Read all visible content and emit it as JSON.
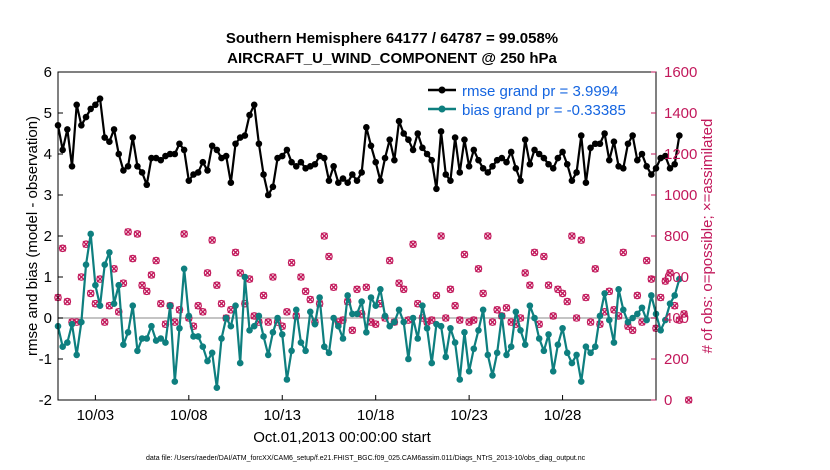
{
  "chart_data": {
    "type": "line",
    "title_line1": "Southern Hemisphere 64177 / 64787 = 99.058%",
    "title_line2": "AIRCRAFT_U_WIND_COMPONENT @ 250 hPa",
    "xlabel": "Oct.01,2013 00:00:00 start",
    "ylabel_left": "rmse and bias (model - observation)",
    "ylabel_right": "# of obs: o=possible; ×=assimilated",
    "footer": "data file: /Users/raeder/DAI/ATM_forcXX/CAM6_setup/f.e21.FHIST_BGC.f09_025.CAM6assim.011/Diags_NTrS_2013-10/obs_diag_output.nc",
    "xlim": [
      1.0,
      33.0
    ],
    "ylim_left": [
      -2,
      6
    ],
    "ylim_right": [
      0,
      1600
    ],
    "x_ticks": [
      {
        "value": 3,
        "label": "10/03"
      },
      {
        "value": 8,
        "label": "10/08"
      },
      {
        "value": 13,
        "label": "10/13"
      },
      {
        "value": 18,
        "label": "10/18"
      },
      {
        "value": 23,
        "label": "10/23"
      },
      {
        "value": 28,
        "label": "10/28"
      }
    ],
    "y_ticks_left": [
      "-2",
      "-1",
      "0",
      "1",
      "2",
      "3",
      "4",
      "5",
      "6"
    ],
    "y_ticks_right": [
      "0",
      "200",
      "400",
      "600",
      "800",
      "1000",
      "1200",
      "1400",
      "1600"
    ],
    "zero_line": 0,
    "series": [
      {
        "name": "rmse grand pr = 3.9994",
        "color": "#000000",
        "x_start": 1.0,
        "x_step": 0.25,
        "values": [
          4.7,
          4.1,
          4.6,
          3.7,
          5.2,
          4.7,
          4.9,
          5.1,
          5.2,
          5.35,
          4.4,
          4.3,
          4.6,
          4.0,
          3.6,
          3.7,
          4.4,
          3.7,
          3.55,
          3.25,
          3.9,
          3.9,
          3.85,
          3.95,
          4.0,
          4.0,
          4.25,
          4.1,
          3.35,
          3.5,
          3.55,
          3.8,
          3.6,
          4.2,
          4.1,
          3.9,
          3.95,
          3.3,
          4.25,
          4.4,
          4.45,
          4.95,
          5.2,
          4.25,
          3.5,
          3.0,
          3.2,
          3.9,
          3.95,
          4.1,
          3.8,
          3.7,
          3.8,
          3.65,
          3.7,
          3.75,
          3.95,
          3.9,
          3.35,
          3.7,
          3.3,
          3.4,
          3.3,
          3.5,
          3.35,
          3.55,
          4.65,
          4.2,
          3.8,
          3.35,
          3.9,
          4.35,
          3.85,
          4.8,
          4.5,
          4.35,
          4.1,
          4.5,
          4.15,
          4.0,
          3.85,
          3.15,
          4.55,
          3.5,
          3.35,
          4.4,
          3.55,
          4.35,
          3.7,
          4.1,
          3.85,
          3.65,
          3.55,
          3.7,
          3.85,
          3.9,
          3.8,
          4.05,
          3.65,
          3.35,
          4.35,
          3.75,
          4.1,
          4.0,
          3.9,
          3.75,
          3.65,
          3.9,
          4.05,
          3.75,
          3.35,
          3.55,
          4.45,
          3.3,
          4.15,
          4.25,
          4.25,
          4.5,
          3.85,
          4.3,
          3.7,
          3.65,
          4.25,
          4.45,
          3.85,
          4.0,
          3.7,
          3.5,
          3.65,
          3.9,
          3.95,
          3.65,
          3.75,
          4.45
        ]
      },
      {
        "name": "bias grand pr = -0.33385",
        "color": "#0e7f7f",
        "x_start": 1.0,
        "x_step": 0.25,
        "values": [
          -0.2,
          -0.7,
          -0.6,
          -0.15,
          -0.9,
          -0.1,
          1.3,
          2.05,
          0.8,
          0.3,
          1.3,
          1.6,
          0.35,
          0.8,
          -0.65,
          -0.35,
          0.3,
          -0.8,
          -0.5,
          -0.5,
          -0.2,
          -0.55,
          -0.5,
          -0.6,
          0.3,
          -1.55,
          -0.25,
          1.2,
          0.05,
          -0.45,
          -0.45,
          -0.7,
          -1.05,
          -0.85,
          -1.7,
          -0.5,
          0.0,
          -0.2,
          0.3,
          -1.1,
          1.0,
          -0.3,
          -0.2,
          0.05,
          -0.45,
          -0.9,
          -0.35,
          0.0,
          -0.4,
          -1.5,
          -0.8,
          0.2,
          -0.6,
          -0.8,
          0.15,
          -0.15,
          0.5,
          -0.7,
          -0.85,
          0.0,
          -0.2,
          -0.5,
          0.55,
          0.1,
          0.1,
          0.4,
          -0.35,
          0.5,
          0.3,
          0.7,
          0.05,
          -0.2,
          -0.1,
          0.2,
          -0.1,
          -1.0,
          0.0,
          -0.5,
          0.3,
          -0.25,
          -1.1,
          -0.15,
          -0.2,
          -0.95,
          -0.25,
          -0.6,
          -1.5,
          -0.35,
          -1.3,
          -0.75,
          -0.3,
          0.2,
          -0.9,
          -1.4,
          -0.85,
          0.05,
          -0.9,
          -0.7,
          0.15,
          -0.3,
          -0.65,
          0.3,
          0.0,
          -0.5,
          -0.8,
          -0.4,
          -1.3,
          -0.65,
          -0.25,
          -0.85,
          -1.1,
          -0.9,
          -1.55,
          -0.7,
          -0.85,
          -0.7,
          0.05,
          0.6,
          -0.05,
          -0.6,
          0.7,
          0.2,
          -0.1,
          0.0,
          0.1,
          0.25,
          -0.05,
          0.55,
          0.1,
          -0.3,
          -0.05,
          0.35,
          0.55,
          0.95
        ]
      }
    ],
    "obs_counts": {
      "name": "# of obs",
      "color": "#c2185b",
      "x_start": 1.0,
      "x_step": 0.25,
      "values": [
        500,
        740,
        480,
        380,
        380,
        600,
        760,
        520,
        470,
        590,
        380,
        460,
        640,
        430,
        570,
        820,
        690,
        810,
        560,
        530,
        610,
        680,
        470,
        370,
        460,
        380,
        440,
        810,
        400,
        360,
        460,
        430,
        620,
        780,
        560,
        470,
        400,
        440,
        720,
        620,
        470,
        590,
        410,
        380,
        510,
        380,
        600,
        380,
        360,
        430,
        670,
        410,
        600,
        530,
        490,
        380,
        470,
        800,
        700,
        550,
        380,
        390,
        480,
        340,
        540,
        420,
        550,
        380,
        370,
        470,
        400,
        680,
        380,
        570,
        540,
        390,
        760,
        470,
        400,
        380,
        390,
        510,
        800,
        400,
        540,
        460,
        390,
        710,
        380,
        390,
        640,
        520,
        800,
        380,
        440,
        410,
        450,
        380,
        370,
        400,
        620,
        560,
        720,
        370,
        700,
        560,
        410,
        540,
        520,
        480,
        800,
        400,
        780,
        500,
        380,
        640,
        370,
        430,
        530,
        440,
        410,
        720,
        360,
        340,
        510,
        380,
        680,
        590,
        350,
        500,
        580,
        620,
        460,
        390,
        420,
        0
      ]
    }
  }
}
